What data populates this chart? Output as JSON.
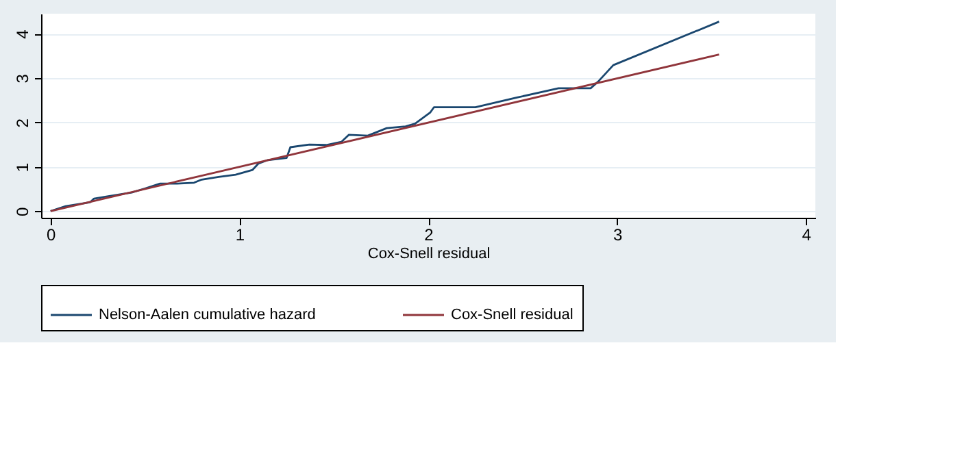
{
  "chart_data": {
    "type": "line",
    "xlabel": "Cox-Snell residual",
    "xlim": [
      -0.05,
      4.05
    ],
    "xticks": [
      0,
      1,
      2,
      3,
      4
    ],
    "ylim": [
      -0.15,
      4.45
    ],
    "yticks": [
      0,
      1,
      2,
      3,
      4
    ],
    "grid": "y",
    "legend": "bottom",
    "series": [
      {
        "name": "Nelson-Aalen cumulative hazard",
        "color": "#1a476f",
        "x": [
          0,
          0.08,
          0.21,
          0.23,
          0.3,
          0.43,
          0.5,
          0.58,
          0.67,
          0.76,
          0.8,
          0.89,
          0.98,
          1.07,
          1.1,
          1.15,
          1.25,
          1.27,
          1.37,
          1.46,
          1.54,
          1.58,
          1.68,
          1.78,
          1.88,
          1.93,
          2.01,
          2.03,
          2.25,
          2.47,
          2.69,
          2.86,
          2.9,
          2.98,
          3.54
        ],
        "values": [
          0,
          0.11,
          0.2,
          0.28,
          0.33,
          0.42,
          0.51,
          0.62,
          0.62,
          0.64,
          0.71,
          0.77,
          0.82,
          0.93,
          1.07,
          1.15,
          1.2,
          1.44,
          1.5,
          1.49,
          1.56,
          1.72,
          1.7,
          1.87,
          1.91,
          1.97,
          2.22,
          2.34,
          2.34,
          2.56,
          2.77,
          2.77,
          2.92,
          3.29,
          4.27
        ]
      },
      {
        "name": "Cox-Snell residual",
        "color": "#90353b",
        "x": [
          0,
          3.54
        ],
        "values": [
          0,
          3.53
        ]
      }
    ]
  }
}
